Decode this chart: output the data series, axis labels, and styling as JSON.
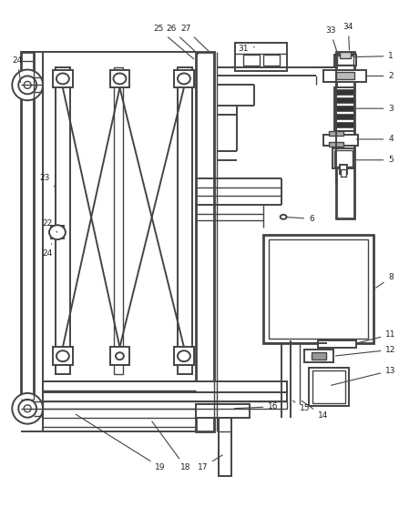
{
  "bg_color": "#ffffff",
  "line_color": "#444444",
  "label_color": "#222222",
  "fig_width": 4.38,
  "fig_height": 5.68,
  "dpi": 100
}
